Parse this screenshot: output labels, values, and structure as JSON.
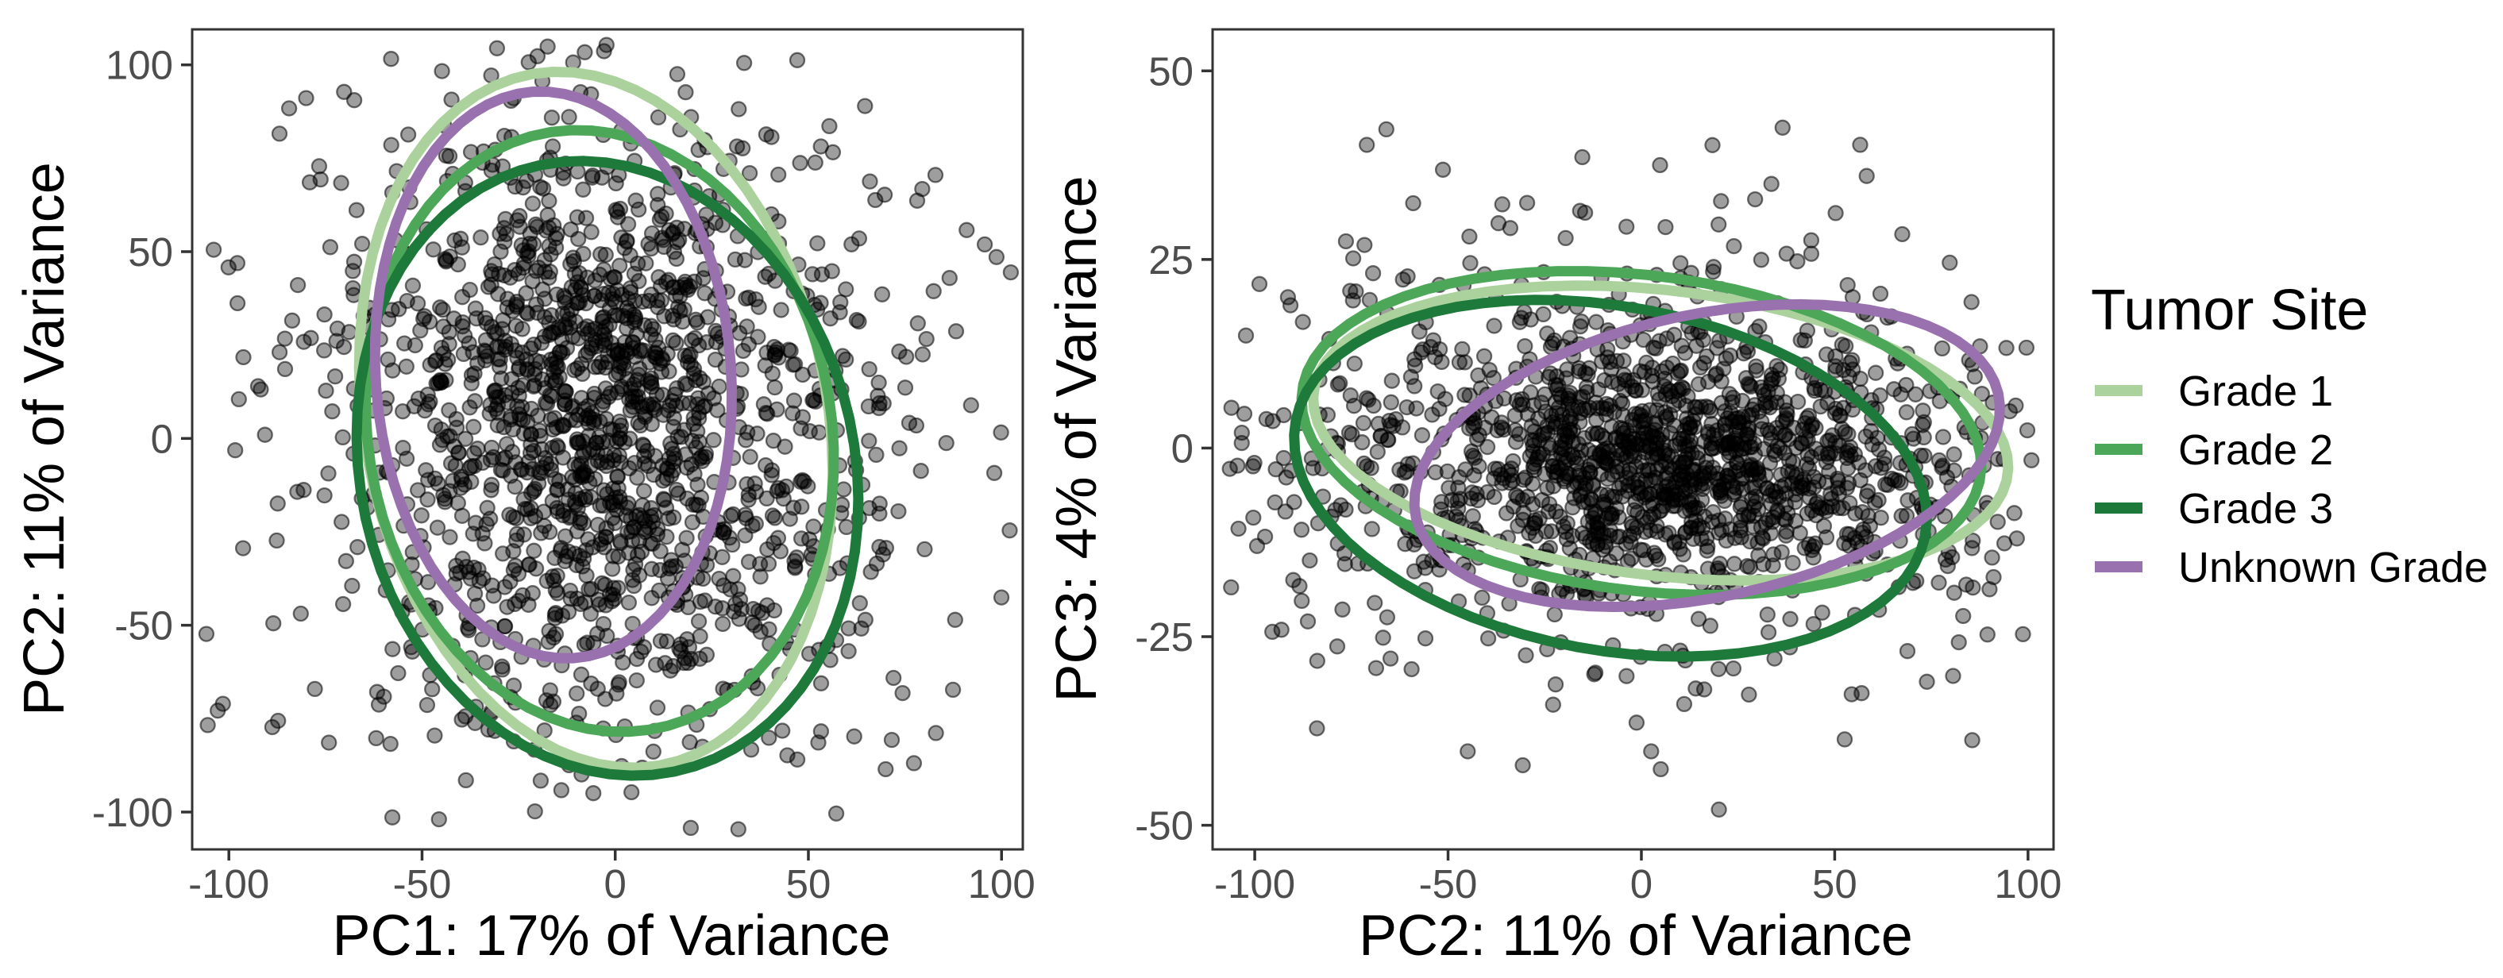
{
  "figure": {
    "kind": "pca-scatter-with-ellipses",
    "background": "#FFFFFF"
  },
  "colors": {
    "background": "#FFFFFF",
    "panel_border": "#333333",
    "tick_mark": "#333333",
    "axis_text_gray": "#4D4D4D",
    "title_black": "#000000",
    "point_black": "#000000"
  },
  "legend": {
    "title": "Tumor Site",
    "position": "right",
    "items": [
      {
        "label": "Grade 1",
        "color": "#ABD19C"
      },
      {
        "label": "Grade 2",
        "color": "#4CA758"
      },
      {
        "label": "Grade 3",
        "color": "#1E7A3A"
      },
      {
        "label": "Unknown Grade",
        "color": "#9871AE"
      }
    ]
  },
  "chart_data": [
    {
      "type": "scatter",
      "panel": "left",
      "title": "",
      "xlabel": "PC1: 17% of Variance",
      "ylabel": "PC2: 11% of Variance",
      "xlim": [
        -109.5,
        105.5
      ],
      "ylim": [
        -110,
        109.5
      ],
      "xticks": [
        -100,
        -50,
        0,
        50,
        100
      ],
      "yticks": [
        -100,
        -50,
        0,
        50,
        100
      ],
      "grid": false,
      "seed": 1234,
      "n_points_approx": 1620,
      "point_style": {
        "fill": "#000000",
        "fill_opacity": 0.38,
        "stroke": "#000000",
        "stroke_opacity": 0.55,
        "radius": 9,
        "stroke_width": 2.3
      },
      "ellipse_style": {
        "stroke_width": 13
      },
      "clip": {
        "x": [
          -106,
          103
        ],
        "y": [
          -106,
          106
        ]
      },
      "scatter_clusters": [
        {
          "n": 520,
          "cx": -10,
          "cy": 25,
          "sdx": 24,
          "sdy": 27
        },
        {
          "n": 480,
          "cx": 3,
          "cy": -15,
          "sdx": 30,
          "sdy": 32
        },
        {
          "n": 380,
          "cx": -2,
          "cy": 5,
          "sdx": 47,
          "sdy": 50
        },
        {
          "n": 240,
          "cx": 2,
          "cy": 0,
          "sdx": 63,
          "sdy": 63
        }
      ],
      "ellipses": [
        {
          "group": "Grade 1",
          "cx": -5,
          "cy": 5,
          "rx": 60,
          "ry": 94,
          "rot_deg": 10
        },
        {
          "group": "Grade 2",
          "cx": -4,
          "cy": 2,
          "rx": 60,
          "ry": 81,
          "rot_deg": 9
        },
        {
          "group": "Grade 3",
          "cx": -2,
          "cy": -8,
          "rx": 64,
          "ry": 83,
          "rot_deg": 12
        },
        {
          "group": "Unknown Grade",
          "cx": -16,
          "cy": 17,
          "rx": 46,
          "ry": 76,
          "rot_deg": 4
        }
      ]
    },
    {
      "type": "scatter",
      "panel": "right",
      "title": "",
      "xlabel": "PC2: 11% of Variance",
      "ylabel": "PC3: 4% of Variance",
      "xlim": [
        -110.9,
        106.6
      ],
      "ylim": [
        -53.2,
        55.5
      ],
      "xticks": [
        -100,
        -50,
        0,
        50,
        100
      ],
      "yticks": [
        -50,
        -25,
        0,
        25,
        50
      ],
      "grid": false,
      "seed": 5678,
      "n_points_approx": 1560,
      "point_style": {
        "fill": "#000000",
        "fill_opacity": 0.38,
        "stroke": "#000000",
        "stroke_opacity": 0.55,
        "radius": 9,
        "stroke_width": 2.3
      },
      "ellipse_style": {
        "stroke_width": 13
      },
      "clip": {
        "x": [
          -107,
          102
        ],
        "y": [
          -49,
          43
        ]
      },
      "scatter_clusters": [
        {
          "n": 650,
          "cx": 10,
          "cy": -2,
          "sdx": 33,
          "sdy": 7.5
        },
        {
          "n": 480,
          "cx": 0,
          "cy": -1,
          "sdx": 50,
          "sdy": 11
        },
        {
          "n": 300,
          "cx": 0,
          "cy": -2,
          "sdx": 68,
          "sdy": 15
        },
        {
          "n": 130,
          "cx": 5,
          "cy": -3,
          "sdx": 58,
          "sdy": 24
        }
      ],
      "ellipses": [
        {
          "group": "Grade 1",
          "cx": 5,
          "cy": 2,
          "rx": 90,
          "ry": 19,
          "rot_deg": -3
        },
        {
          "group": "Grade 2",
          "cx": 0,
          "cy": 2,
          "rx": 88,
          "ry": 21,
          "rot_deg": -3
        },
        {
          "group": "Grade 3",
          "cx": -8,
          "cy": -4,
          "rx": 82,
          "ry": 23,
          "rot_deg": -4
        },
        {
          "group": "Unknown Grade",
          "cx": 17,
          "cy": -1,
          "rx": 76,
          "ry": 19,
          "rot_deg": 5
        }
      ]
    }
  ]
}
